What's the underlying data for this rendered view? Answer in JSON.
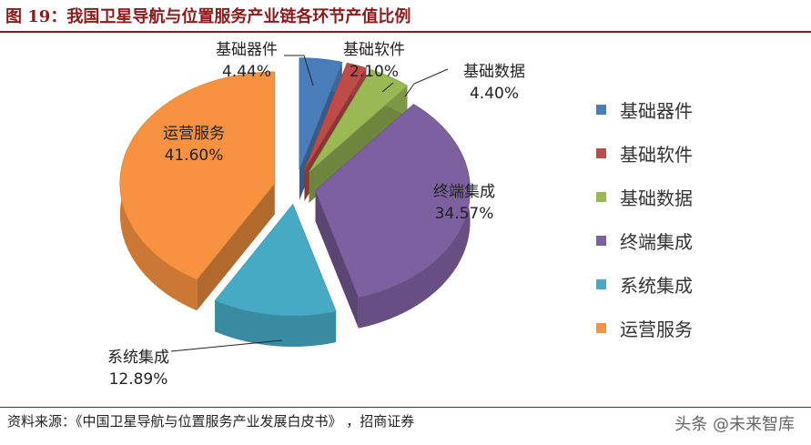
{
  "figure": {
    "title": "图 19：我国卫星导航与位置服务产业链各环节产值比例",
    "source": "资料来源：《中国卫星导航与位置服务产业发展白皮书》 ，招商证券",
    "watermark": "头条 @未来智库"
  },
  "chart_data": {
    "type": "pie",
    "title": "",
    "categories": [
      "基础器件",
      "基础软件",
      "基础数据",
      "终端集成",
      "系统集成",
      "运营服务"
    ],
    "values": [
      4.44,
      2.1,
      4.4,
      34.57,
      12.89,
      41.6
    ],
    "value_labels": [
      "4.44%",
      "2.10%",
      "4.40%",
      "34.57%",
      "12.89%",
      "41.60%"
    ],
    "colors": [
      "#4a7ebb",
      "#be4b48",
      "#98b954",
      "#7d60a0",
      "#46aac4",
      "#f69240"
    ],
    "style": "3d-exploded",
    "legend_position": "right"
  }
}
